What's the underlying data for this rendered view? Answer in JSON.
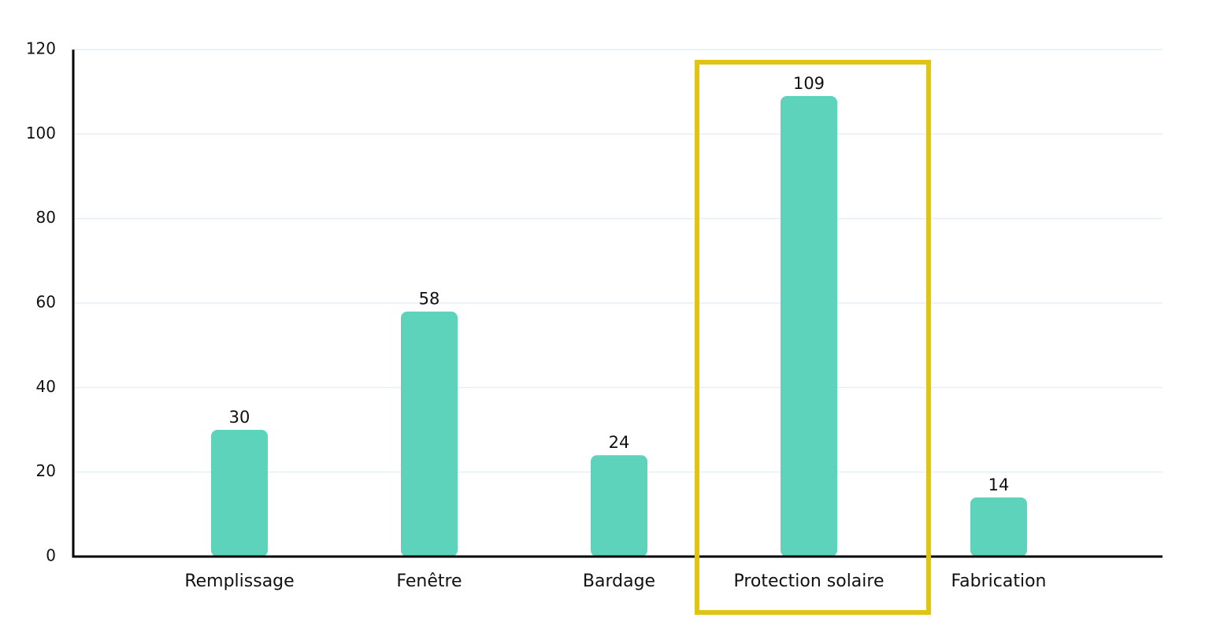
{
  "chart_data": {
    "type": "bar",
    "categories": [
      "Remplissage",
      "Fenêtre",
      "Bardage",
      "Protection solaire",
      "Fabrication"
    ],
    "values": [
      30,
      58,
      24,
      109,
      14
    ],
    "color": "#5dd3bc",
    "ylim": [
      0,
      120
    ],
    "yticks": [
      0,
      20,
      40,
      60,
      80,
      100,
      120
    ],
    "grid": true
  }
}
